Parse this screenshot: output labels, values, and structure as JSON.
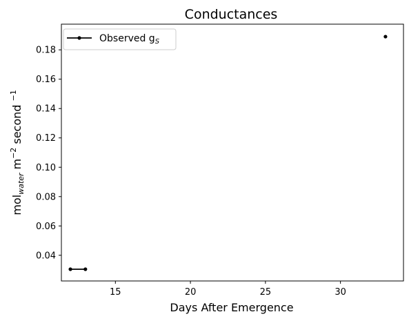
{
  "chart_data": {
    "type": "line",
    "title": "Conductances",
    "xlabel": "Days After Emergence",
    "ylabel": {
      "base": "mol",
      "subscript": "water",
      "rest": " m",
      "sup1": "−2",
      "mid": " second ",
      "sup2": "−1"
    },
    "xlim": [
      11.4,
      34.2
    ],
    "ylim": [
      0.0225,
      0.1975
    ],
    "x_ticks": [
      15,
      20,
      25,
      30
    ],
    "y_ticks": [
      0.04,
      0.06,
      0.08,
      0.1,
      0.12,
      0.14,
      0.16,
      0.18
    ],
    "x_tick_labels": [
      "15",
      "20",
      "25",
      "30"
    ],
    "y_tick_labels": [
      "0.04",
      "0.06",
      "0.08",
      "0.10",
      "0.12",
      "0.14",
      "0.16",
      "0.18"
    ],
    "grid": false,
    "legend_position": "top-left",
    "series": [
      {
        "name": {
          "base": "Observed g",
          "subscript": "S"
        },
        "color": "#000000",
        "marker": "dot",
        "segments": [
          [
            {
              "x": 12,
              "y": 0.0305
            },
            {
              "x": 13,
              "y": 0.0305
            }
          ],
          [
            {
              "x": 33,
              "y": 0.189
            }
          ]
        ]
      }
    ]
  }
}
